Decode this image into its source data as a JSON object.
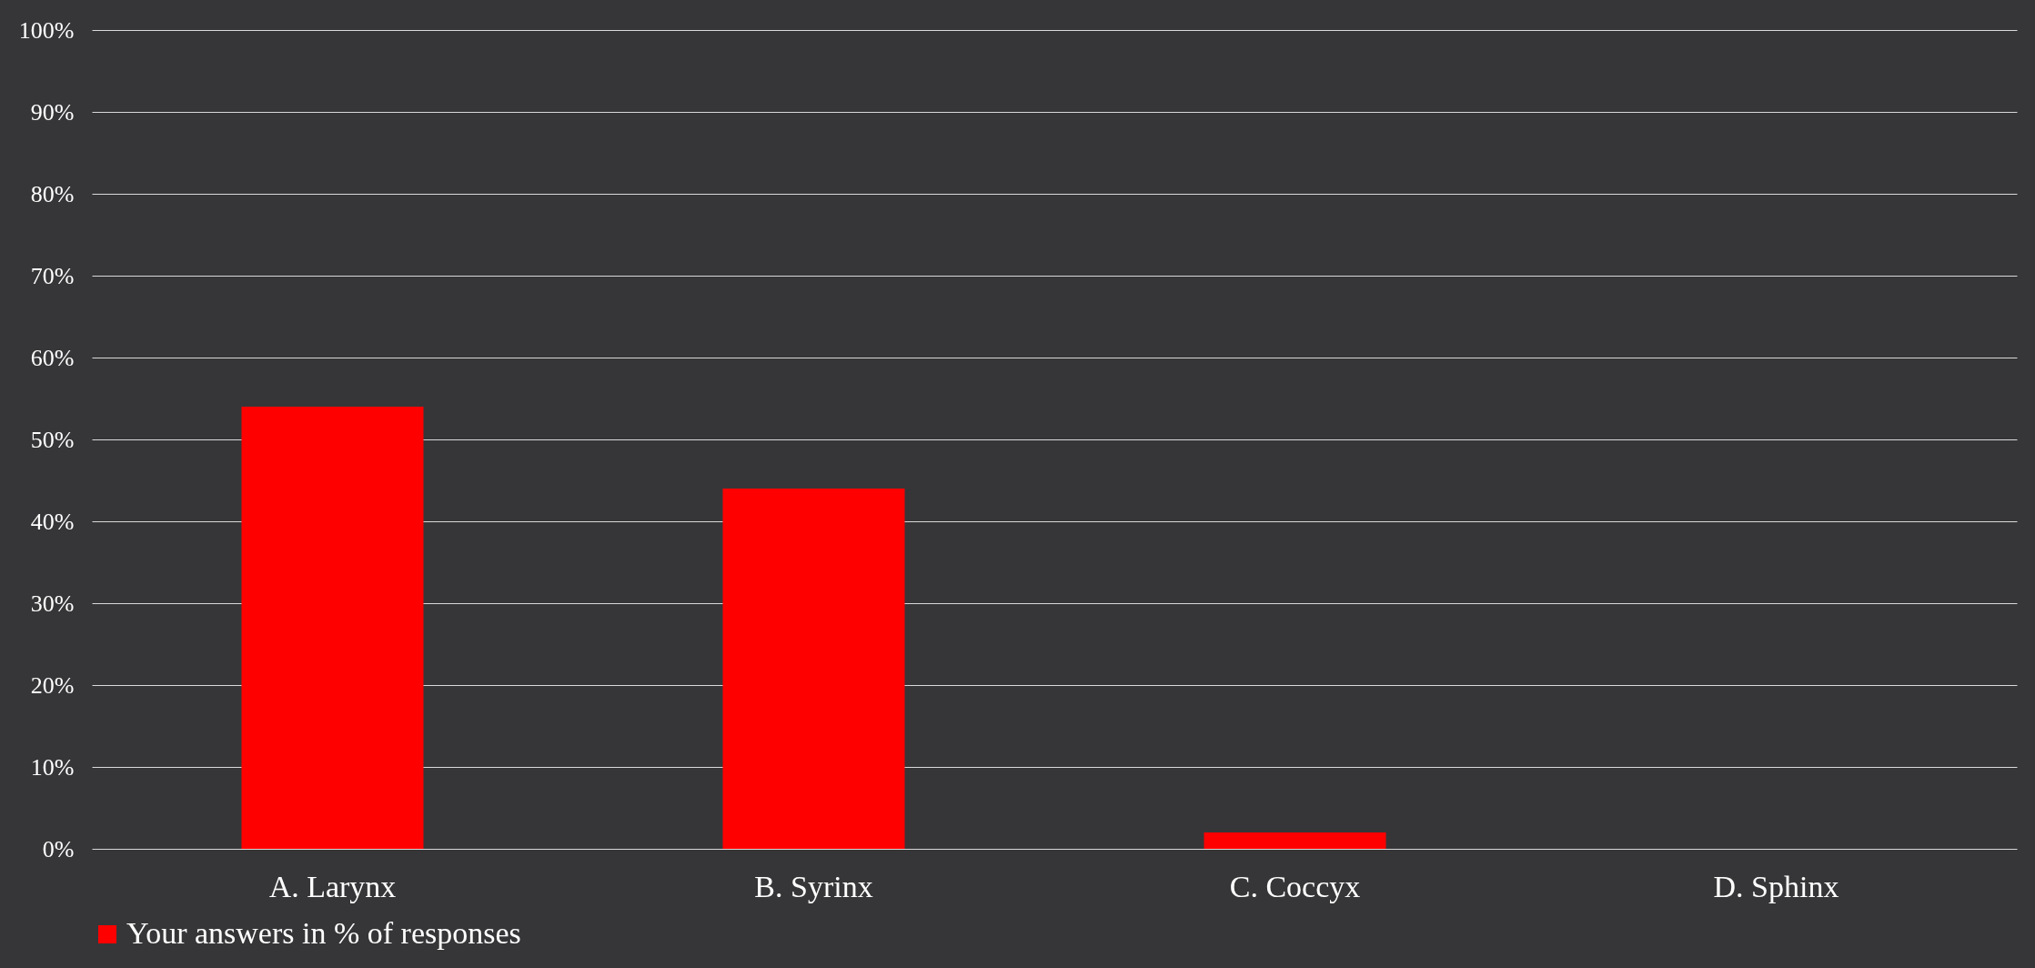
{
  "chart_data": {
    "type": "bar",
    "categories": [
      "A. Larynx",
      "B. Syrinx",
      "C. Coccyx",
      "D. Sphinx"
    ],
    "series": [
      {
        "name": "Your answers in % of responses",
        "color": "#ff0000",
        "values": [
          54,
          44,
          2,
          0
        ]
      }
    ],
    "ylim": [
      0,
      100
    ],
    "yticks": [
      {
        "value": 0,
        "label": "0%"
      },
      {
        "value": 10,
        "label": "10%"
      },
      {
        "value": 20,
        "label": "20%"
      },
      {
        "value": 30,
        "label": "30%"
      },
      {
        "value": 40,
        "label": "40%"
      },
      {
        "value": 50,
        "label": "50%"
      },
      {
        "value": 60,
        "label": "60%"
      },
      {
        "value": 70,
        "label": "70%"
      },
      {
        "value": 80,
        "label": "80%"
      },
      {
        "value": 90,
        "label": "90%"
      },
      {
        "value": 100,
        "label": "100%"
      }
    ],
    "grid": "y",
    "legend": "bottom"
  }
}
